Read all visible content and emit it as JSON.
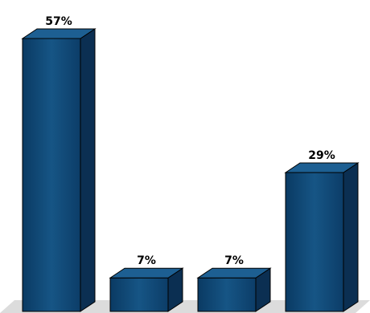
{
  "chart_data": {
    "type": "bar",
    "categories": [
      "",
      "",
      "",
      ""
    ],
    "values": [
      57,
      7,
      7,
      29
    ],
    "data_labels": [
      "57%",
      "7%",
      "7%",
      "29%"
    ],
    "title": "",
    "xlabel": "",
    "ylabel": "",
    "ylim": [
      0,
      60
    ],
    "grid": false,
    "legend": "none",
    "colors": {
      "bar_front": "#0f3f6b",
      "bar_top": "#1d5f92",
      "bar_side": "#0b2f52",
      "floor": "#dcdcdc"
    }
  }
}
